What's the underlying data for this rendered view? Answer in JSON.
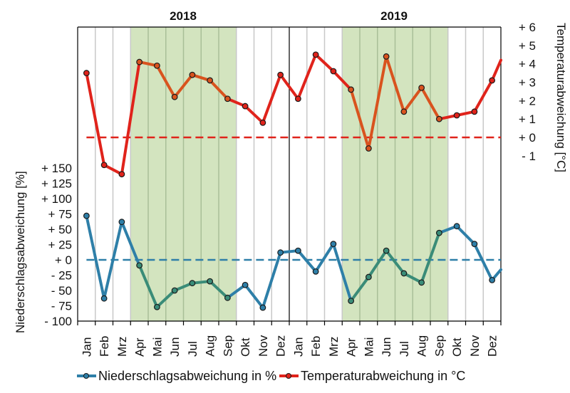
{
  "chart_data": {
    "type": "line",
    "title": "",
    "year_labels": [
      "2018",
      "2019"
    ],
    "categories": [
      "Jan",
      "Feb",
      "Mrz",
      "Apr",
      "Mai",
      "Jun",
      "Jul",
      "Aug",
      "Sep",
      "Okt",
      "Nov",
      "Dez",
      "Jan",
      "Feb",
      "Mrz",
      "Apr",
      "Mai",
      "Jun",
      "Jul",
      "Aug",
      "Sep",
      "Okt",
      "Nov",
      "Dez"
    ],
    "vegetation_period_shading": [
      {
        "start": "Apr 2018",
        "end": "Sep 2018",
        "color": "#d3e4bf"
      },
      {
        "start": "Apr 2019",
        "end": "Sep 2019",
        "color": "#d3e4bf"
      }
    ],
    "left_axis": {
      "label": "Niederschlagsabweichung [%]",
      "ticks": [
        150,
        125,
        100,
        75,
        50,
        25,
        0,
        -25,
        -50,
        -75,
        -100
      ],
      "tick_labels": [
        "+ 150",
        "+ 125",
        "+ 100",
        "+ 75",
        "+ 50",
        "+ 25",
        "+ 0",
        "- 25",
        "- 50",
        "- 75",
        "- 100"
      ],
      "range": [
        -100,
        275
      ]
    },
    "right_axis": {
      "label": "Temperaturabweichung [°C]",
      "ticks": [
        6,
        5,
        4,
        3,
        2,
        1,
        0,
        -1
      ],
      "tick_labels": [
        "+ 6",
        "+ 5",
        "+ 4",
        "+ 3",
        "+ 2",
        "+ 1",
        "+ 0",
        "- 1"
      ],
      "range": [
        -10,
        6
      ]
    },
    "series": [
      {
        "name": "Niederschlagsabweichung in %",
        "axis": "left",
        "color": "#2e7fa8",
        "color_in_shading": "#3a8c78",
        "reference_line": 0,
        "values": [
          72,
          -63,
          62,
          -9,
          -77,
          -50,
          -38,
          -35,
          -62,
          -41,
          -78,
          12,
          15,
          -19,
          26,
          -67,
          -28,
          15,
          -22,
          -37,
          44,
          55,
          26,
          -33
        ],
        "trailing_value": -16
      },
      {
        "name": "Temperaturabweichung in °C",
        "axis": "right",
        "color": "#e0231b",
        "color_in_shading": "#d9531e",
        "reference_line": 0,
        "values": [
          3.5,
          -1.5,
          -2.0,
          4.1,
          3.9,
          2.2,
          3.4,
          3.1,
          2.1,
          1.7,
          0.8,
          3.4,
          2.1,
          4.5,
          3.6,
          2.6,
          -0.6,
          4.4,
          1.4,
          2.7,
          1.0,
          1.2,
          1.4,
          3.1
        ],
        "trailing_value": 4.2
      }
    ],
    "legend": {
      "position": "bottom",
      "entries": [
        "Niederschlagsabweichung in %",
        "Temperaturabweichung in °C"
      ]
    },
    "grid": "vertical"
  }
}
